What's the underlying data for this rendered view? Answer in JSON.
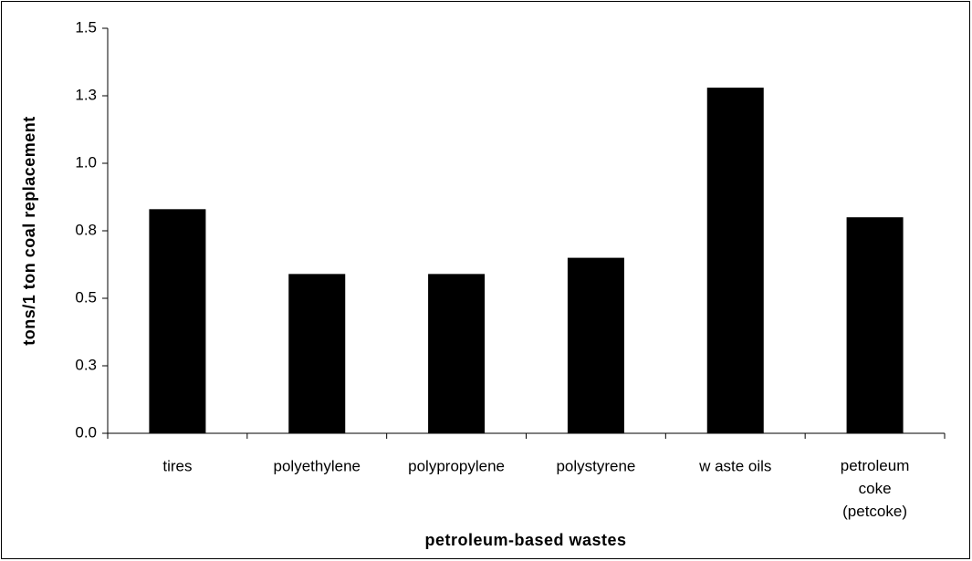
{
  "chart_data": {
    "type": "bar",
    "xlabel": "petroleum-based wastes",
    "ylabel": "tons/1 ton coal replacement",
    "categories": [
      "tires",
      "polyethylene",
      "polypropylene",
      "polystyrene",
      "w aste oils",
      "petroleum coke (petcoke)"
    ],
    "values": [
      0.83,
      0.59,
      0.59,
      0.65,
      1.28,
      0.8
    ],
    "color": "#000000",
    "ylim": [
      0,
      1.5
    ],
    "yticks": [
      {
        "value": 0,
        "label": "0.0"
      },
      {
        "value": 0.25,
        "label": "0.3"
      },
      0.5,
      {
        "value": 0.75,
        "label": "0.8"
      },
      {
        "value": 1.0,
        "label": "1.0"
      },
      {
        "value": 1.25,
        "label": "1.3"
      },
      1.5
    ],
    "grid": false
  }
}
